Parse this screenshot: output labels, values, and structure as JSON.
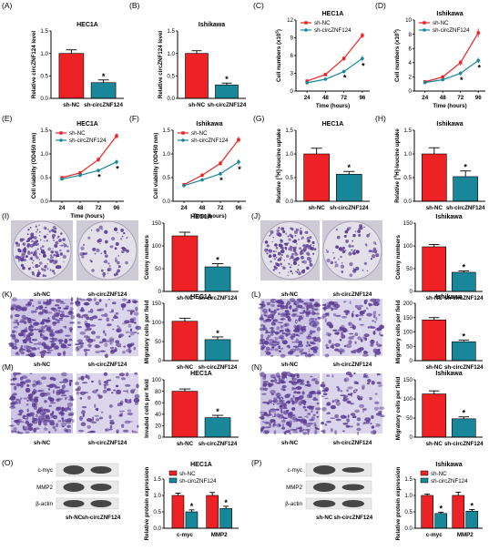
{
  "colors": {
    "nc": "#ee2225",
    "circ": "#18879a",
    "dish": "#e4e0ea",
    "stain": "#5b3f93",
    "invade_bg": "#dcd6ec"
  },
  "groups": [
    "sh-NC",
    "sh-circZNF124"
  ],
  "time_label": "Time (hours)",
  "hours": [
    24,
    48,
    72,
    96
  ],
  "panels": {
    "A": {
      "label": "(A)",
      "title": "HEC1A",
      "ylabel": "Relative circZNF124 level"
    },
    "B": {
      "label": "(B)",
      "title": "Ishikawa",
      "ylabel": "Relative circZNF124 level"
    },
    "C": {
      "label": "(C)",
      "title": "HEC1A",
      "ylabel_pre": "Cell numbers (x10",
      "ylabel_sup": "5",
      "ylabel_post": ")"
    },
    "D": {
      "label": "(D)",
      "title": "Ishikawa",
      "ylabel_pre": "Cell numbers (x10",
      "ylabel_sup": "5",
      "ylabel_post": ")"
    },
    "E": {
      "label": "(E)",
      "title": "HEC1A",
      "ylabel": "Cell viability (OD450 nm)"
    },
    "F": {
      "label": "(F)",
      "title": "Ishikawa",
      "ylabel": "Cell viability (OD450 nm)"
    },
    "G": {
      "label": "(G)",
      "title": "HEC1A",
      "ylabel_pre": "Relative [",
      "ylabel_sup": "3",
      "ylabel_post": "H]-leucine uptake"
    },
    "H": {
      "label": "(H)",
      "title": "Ishikawa",
      "ylabel_pre": "Relative [",
      "ylabel_sup": "3",
      "ylabel_post": "H]-leucine uptake"
    },
    "I": {
      "label": "(I)",
      "title": "HEC1A",
      "ylabel": "Colony numbers"
    },
    "J": {
      "label": "(J)",
      "title": "Ishikawa",
      "ylabel": "Colony numbers"
    },
    "K": {
      "label": "(K)",
      "title": "HEC1A",
      "ylabel": "Migratory cells per field"
    },
    "L": {
      "label": "(L)",
      "title": "Ishikawa",
      "ylabel": "Migratory cells per field"
    },
    "M": {
      "label": "(M)",
      "title": "HEC1A",
      "ylabel": "Invaded cells per field"
    },
    "N": {
      "label": "(N)",
      "title": "Ishikawa",
      "ylabel": "Migratory cells per field"
    },
    "O": {
      "label": "(O)",
      "title": "HEC1A",
      "ylabel": "Relative protein expression"
    },
    "P": {
      "label": "(P)",
      "title": "Ishikawa",
      "ylabel": "Relative protein expression"
    }
  },
  "blot_labels": [
    "c-myc",
    "MMP2",
    "β-actin"
  ],
  "protein_categories": [
    "c-myc",
    "MMP2"
  ],
  "significance_mark": "*",
  "chart_data": [
    {
      "panel": "A",
      "type": "bar",
      "title": "HEC1A",
      "ylabel": "Relative circZNF124 level",
      "categories": [
        "sh-NC",
        "sh-circZNF124"
      ],
      "values": [
        1.0,
        0.35
      ],
      "errors": [
        0.08,
        0.06
      ],
      "ylim": [
        0,
        1.5
      ],
      "yticks": [
        "0.0",
        "0.5",
        "1.0",
        "1.5"
      ],
      "significant": [
        false,
        true
      ]
    },
    {
      "panel": "B",
      "type": "bar",
      "title": "Ishikawa",
      "ylabel": "Relative circZNF124 level",
      "categories": [
        "sh-NC",
        "sh-circZNF124"
      ],
      "values": [
        1.0,
        0.3
      ],
      "errors": [
        0.06,
        0.04
      ],
      "ylim": [
        0,
        1.5
      ],
      "yticks": [
        "0.0",
        "0.5",
        "1.0",
        "1.5"
      ],
      "significant": [
        false,
        true
      ]
    },
    {
      "panel": "C",
      "type": "line",
      "title": "HEC1A",
      "x": [
        24,
        48,
        72,
        96
      ],
      "xlabel": "Time (hours)",
      "ylim": [
        0,
        12
      ],
      "yticks": [
        "0",
        "3",
        "6",
        "9",
        "12"
      ],
      "legend": "top-left",
      "series": [
        {
          "name": "sh-NC",
          "values": [
            1.7,
            2.8,
            5.5,
            9.4
          ],
          "errors": [
            0.2,
            0.3,
            0.4,
            0.5
          ]
        },
        {
          "name": "sh-circZNF124",
          "values": [
            1.4,
            2.0,
            3.3,
            5.5
          ],
          "errors": [
            0.2,
            0.2,
            0.3,
            0.5
          ]
        }
      ],
      "significant_x": [
        72,
        96
      ]
    },
    {
      "panel": "D",
      "type": "line",
      "title": "Ishikawa",
      "x": [
        24,
        48,
        72,
        96
      ],
      "xlabel": "Time (hours)",
      "ylim": [
        0,
        10
      ],
      "yticks": [
        "0",
        "2",
        "4",
        "6",
        "8",
        "10"
      ],
      "legend": "top-left",
      "series": [
        {
          "name": "sh-NC",
          "values": [
            1.3,
            2.0,
            4.0,
            8.2
          ],
          "errors": [
            0.2,
            0.2,
            0.4,
            0.6
          ]
        },
        {
          "name": "sh-circZNF124",
          "values": [
            1.2,
            1.6,
            2.5,
            4.3
          ],
          "errors": [
            0.1,
            0.2,
            0.3,
            0.4
          ]
        }
      ],
      "significant_x": [
        72,
        96
      ]
    },
    {
      "panel": "E",
      "type": "line",
      "title": "HEC1A",
      "x": [
        24,
        48,
        72,
        96
      ],
      "xlabel": "Time (hours)",
      "ylim": [
        0,
        1.5
      ],
      "yticks": [
        "0.0",
        "0.5",
        "1.0",
        "1.5"
      ],
      "legend": "top-left",
      "series": [
        {
          "name": "sh-NC",
          "values": [
            0.5,
            0.6,
            0.88,
            1.38
          ],
          "errors": [
            0.03,
            0.04,
            0.05,
            0.06
          ]
        },
        {
          "name": "sh-circZNF124",
          "values": [
            0.47,
            0.55,
            0.65,
            0.83
          ],
          "errors": [
            0.03,
            0.04,
            0.04,
            0.05
          ]
        }
      ],
      "significant_x": [
        72,
        96
      ]
    },
    {
      "panel": "F",
      "type": "line",
      "title": "Ishikawa",
      "x": [
        24,
        48,
        72,
        96
      ],
      "xlabel": "Time (hours)",
      "ylim": [
        0,
        1.5
      ],
      "yticks": [
        "0.0",
        "0.5",
        "1.0",
        "1.5"
      ],
      "legend": "top-left",
      "series": [
        {
          "name": "sh-NC",
          "values": [
            0.35,
            0.55,
            0.8,
            1.3
          ],
          "errors": [
            0.03,
            0.04,
            0.05,
            0.07
          ]
        },
        {
          "name": "sh-circZNF124",
          "values": [
            0.33,
            0.45,
            0.58,
            0.83
          ],
          "errors": [
            0.03,
            0.03,
            0.04,
            0.06
          ]
        }
      ],
      "significant_x": [
        72,
        96
      ]
    },
    {
      "panel": "G",
      "type": "bar",
      "title": "HEC1A",
      "categories": [
        "sh-NC",
        "sh-circZNF124"
      ],
      "values": [
        1.0,
        0.57
      ],
      "errors": [
        0.12,
        0.06
      ],
      "ylim": [
        0,
        1.5
      ],
      "yticks": [
        "0.0",
        "0.5",
        "1.0",
        "1.5"
      ],
      "significant": [
        false,
        true
      ]
    },
    {
      "panel": "H",
      "type": "bar",
      "title": "Ishikawa",
      "categories": [
        "sh-NC",
        "sh-circZNF124"
      ],
      "values": [
        1.0,
        0.52
      ],
      "errors": [
        0.13,
        0.12
      ],
      "ylim": [
        0,
        1.5
      ],
      "yticks": [
        "0.0",
        "0.5",
        "1.0",
        "1.5"
      ],
      "significant": [
        false,
        true
      ]
    },
    {
      "panel": "I",
      "type": "bar",
      "title": "HEC1A",
      "ylabel": "Colony numbers",
      "categories": [
        "sh-NC",
        "sh-circZNF124"
      ],
      "values": [
        122,
        54
      ],
      "errors": [
        8,
        7
      ],
      "ylim": [
        0,
        150
      ],
      "yticks": [
        "0",
        "50",
        "100",
        "150"
      ],
      "significant": [
        false,
        true
      ]
    },
    {
      "panel": "J",
      "type": "bar",
      "title": "Ishikawa",
      "ylabel": "Colony numbers",
      "categories": [
        "sh-NC",
        "sh-circZNF124"
      ],
      "values": [
        98,
        42
      ],
      "errors": [
        5,
        3
      ],
      "ylim": [
        0,
        150
      ],
      "yticks": [
        "0",
        "50",
        "100",
        "150"
      ],
      "significant": [
        false,
        true
      ]
    },
    {
      "panel": "K",
      "type": "bar",
      "title": "HEC1A",
      "ylabel": "Migratory cells per field",
      "categories": [
        "sh-NC",
        "sh-circZNF124"
      ],
      "values": [
        103,
        55
      ],
      "errors": [
        8,
        7
      ],
      "ylim": [
        0,
        150
      ],
      "yticks": [
        "0",
        "50",
        "100",
        "150"
      ],
      "significant": [
        false,
        true
      ]
    },
    {
      "panel": "L",
      "type": "bar",
      "title": "Ishikawa",
      "ylabel": "Migratory cells per field",
      "categories": [
        "sh-NC",
        "sh-circZNF124"
      ],
      "values": [
        142,
        66
      ],
      "errors": [
        8,
        6
      ],
      "ylim": [
        0,
        200
      ],
      "yticks": [
        "0",
        "50",
        "100",
        "150",
        "200"
      ],
      "significant": [
        false,
        true
      ]
    },
    {
      "panel": "M",
      "type": "bar",
      "title": "HEC1A",
      "ylabel": "Invaded cells per field",
      "categories": [
        "sh-NC",
        "sh-circZNF124"
      ],
      "values": [
        80,
        34
      ],
      "errors": [
        4,
        4
      ],
      "ylim": [
        0,
        100
      ],
      "yticks": [
        "0",
        "20",
        "40",
        "60",
        "80",
        "100"
      ],
      "significant": [
        false,
        true
      ]
    },
    {
      "panel": "N",
      "type": "bar",
      "title": "Ishikawa",
      "ylabel": "Migratory cells per field",
      "categories": [
        "sh-NC",
        "sh-circZNF124"
      ],
      "values": [
        113,
        48
      ],
      "errors": [
        8,
        5
      ],
      "ylim": [
        0,
        150
      ],
      "yticks": [
        "0",
        "50",
        "100",
        "150"
      ],
      "significant": [
        false,
        true
      ]
    },
    {
      "panel": "O",
      "type": "bar",
      "title": "HEC1A",
      "ylabel": "Relative protein expression",
      "categories": [
        "c-myc",
        "MMP2"
      ],
      "ylim": [
        0,
        1.5
      ],
      "yticks": [
        "0.0",
        "0.5",
        "1.0",
        "1.5"
      ],
      "legend": "top",
      "series": [
        {
          "name": "sh-NC",
          "values": [
            1.0,
            1.0
          ],
          "errors": [
            0.07,
            0.09
          ]
        },
        {
          "name": "sh-circZNF124",
          "values": [
            0.5,
            0.6
          ],
          "errors": [
            0.06,
            0.07
          ]
        }
      ],
      "significant": [
        true,
        true
      ]
    },
    {
      "panel": "P",
      "type": "bar",
      "title": "Ishikawa",
      "ylabel": "Relative protein expression",
      "categories": [
        "c-myc",
        "MMP2"
      ],
      "ylim": [
        0,
        1.5
      ],
      "yticks": [
        "0.0",
        "0.5",
        "1.0",
        "1.5"
      ],
      "legend": "top",
      "series": [
        {
          "name": "sh-NC",
          "values": [
            1.0,
            1.0
          ],
          "errors": [
            0.04,
            0.1
          ]
        },
        {
          "name": "sh-circZNF124",
          "values": [
            0.45,
            0.52
          ],
          "errors": [
            0.04,
            0.05
          ]
        }
      ],
      "significant": [
        true,
        true
      ]
    }
  ]
}
